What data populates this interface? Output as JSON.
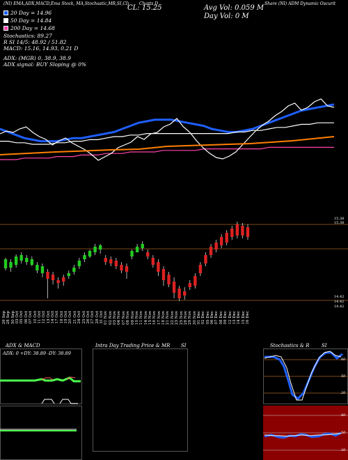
{
  "header": {
    "left_text": "(NI) EMA,ADX,MACD,Ema Stock, MA,Stochastic,MR,SI,CIp Charts (Nov) ,Daily,Technical,Indicator",
    "center_text": "Charts D",
    "close_label": "CL: 15.25",
    "avg_vol_label": "Avg Vol: 0.059 M",
    "day_vol_label": "Day Vol: 0   M",
    "right_text": "Share (NI) ADM Dynamic Oscurit"
  },
  "legend": {
    "ma20": {
      "label": "20  Day = 14.96",
      "color": "#1f5fff"
    },
    "ma50": {
      "label": "50  Day = 14.84",
      "color": "#ffffff"
    },
    "ma200": {
      "label": "200  Day = 14.68",
      "color": "#ff44aa"
    },
    "stochastics": "Stochastics: 89.27",
    "rsi": "R          SI 14/5: 48.92  / 51.82",
    "macd": "MACD: 15.16, 14.93, 0.21 D",
    "adx": "ADX:                          (MGR) 0, 38.9, 38.9",
    "adx_signal": "ADX  signal:                          BUY Sloping @ 0%"
  },
  "price_axis": {
    "top_labels": [
      "15.38",
      "15.38"
    ],
    "bottom_labels": [
      "14.42",
      "14.42",
      "14.42"
    ]
  },
  "dates": [
    "26 Sep",
    "28 Sep",
    "30 Sep",
    "03 Oct",
    "05 Oct",
    "06 Oct",
    "07 Oct",
    "10 Oct",
    "11 Oct",
    "12 Oct",
    "13 Oct",
    "14 Oct",
    "17 Oct",
    "18 Oct",
    "19 Oct",
    "20 Oct",
    "21 Oct",
    "24 Oct",
    "25 Oct",
    "26 Oct",
    "27 Oct",
    "28 Oct",
    "31 Oct",
    "01 Nov",
    "02 Nov",
    "03 Nov",
    "04 Nov",
    "07 Nov",
    "08 Nov",
    "09 Nov",
    "10 Nov",
    "11 Nov",
    "14 Nov",
    "15 Nov",
    "16 Nov",
    "17 Nov",
    "18 Nov",
    "21 Nov",
    "22 Nov",
    "23 Nov",
    "25 Nov",
    "28 Nov",
    "29 Nov",
    "30 Nov",
    "01 Dec",
    "02 Dec",
    "05 Dec",
    "06 Dec",
    "07 Dec",
    "08 Dec",
    "09 Dec",
    "12 Dec",
    "13 Dec",
    "14 Dec",
    "15 Dec",
    "16 Dec"
  ],
  "panels": {
    "adx_macd_title": "ADX  & MACD",
    "adx_values": "ADX: 0   +DY: 38.89  -DY: 38.89",
    "intra_title": "Intra  Day Trading Price  & MR",
    "intra_si": "SI",
    "stoch_title": "Stochastics & R",
    "stoch_si": "SI",
    "stoch_ticks": [
      "80",
      "50",
      "20"
    ],
    "rsi_ticks": [
      "80",
      "50",
      "20"
    ]
  },
  "chart_data": [
    {
      "type": "line",
      "title": "",
      "series": [
        {
          "name": "20  Day",
          "color": "#1f5fff",
          "values": [
            14.8,
            14.78,
            14.76,
            14.74,
            14.73,
            14.72,
            14.72,
            14.72,
            14.73,
            14.74,
            14.74,
            14.75,
            14.76,
            14.77,
            14.78,
            14.8,
            14.82,
            14.84,
            14.85,
            14.86,
            14.86,
            14.86,
            14.85,
            14.84,
            14.83,
            14.82,
            14.8,
            14.79,
            14.78,
            14.78,
            14.79,
            14.8,
            14.82,
            14.84,
            14.86,
            14.88,
            14.9,
            14.92,
            14.93,
            14.94,
            14.95,
            14.96
          ]
        },
        {
          "name": "50  Day",
          "color": "#ffffff",
          "values": [
            14.72,
            14.72,
            14.71,
            14.71,
            14.7,
            14.7,
            14.7,
            14.71,
            14.71,
            14.72,
            14.72,
            14.73,
            14.73,
            14.74,
            14.75,
            14.75,
            14.76,
            14.76,
            14.77,
            14.77,
            14.77,
            14.77,
            14.77,
            14.77,
            14.77,
            14.77,
            14.77,
            14.77,
            14.77,
            14.78,
            14.78,
            14.79,
            14.79,
            14.8,
            14.81,
            14.81,
            14.82,
            14.83,
            14.83,
            14.84,
            14.84,
            14.84
          ]
        },
        {
          "name": "200  Day",
          "color": "#ff44aa",
          "values": [
            14.6,
            14.6,
            14.6,
            14.61,
            14.61,
            14.61,
            14.61,
            14.62,
            14.62,
            14.62,
            14.63,
            14.63,
            14.63,
            14.64,
            14.64,
            14.64,
            14.65,
            14.65,
            14.65,
            14.65,
            14.66,
            14.66,
            14.66,
            14.66,
            14.66,
            14.67,
            14.67,
            14.67,
            14.67,
            14.67,
            14.67,
            14.67,
            14.67,
            14.68,
            14.68,
            14.68,
            14.68,
            14.68,
            14.68,
            14.68,
            14.68,
            14.68
          ]
        }
      ]
    }
  ],
  "colors": {
    "up": "#22cc22",
    "down": "#dd2222",
    "grid": "#7a4a1a",
    "ema": "#ff7f00"
  }
}
